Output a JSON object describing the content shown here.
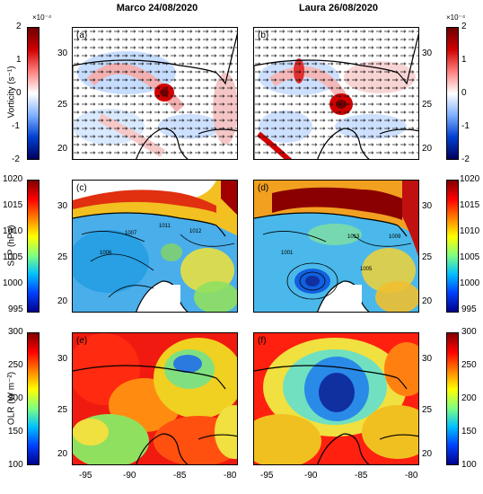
{
  "columns": {
    "left_title": "Marco 24/08/2020",
    "right_title": "Laura 26/08/2020"
  },
  "panel_labels": [
    "(a)",
    "(b)",
    "(c)",
    "(d)",
    "(e)",
    "(f)"
  ],
  "lat_ticks": [
    "30",
    "25",
    "20"
  ],
  "lon_ticks": [
    "-95",
    "-90",
    "-85",
    "-80"
  ],
  "rows": [
    {
      "ylabel": "Vorticity (s⁻¹)",
      "exponent": "×10⁻⁴",
      "ticks": [
        "2",
        "1",
        "0",
        "-1",
        "-2"
      ],
      "colormap": "blue-white-red"
    },
    {
      "ylabel": "SLP (hPa)",
      "ticks": [
        "1020",
        "1015",
        "1010",
        "1005",
        "1000",
        "995"
      ],
      "colormap": "jet"
    },
    {
      "ylabel": "OLR (W m⁻²)",
      "ticks": [
        "300",
        "250",
        "200",
        "150",
        "100"
      ],
      "colormap": "jet"
    }
  ],
  "contour_labels": [
    "1007",
    "1011",
    "1012",
    "1006",
    "1001",
    "1013",
    "1005",
    "1009"
  ],
  "colors": {
    "coast": "#000000",
    "deep_red": "#a00000",
    "red": "#e02020",
    "blue": "#2060e0",
    "cyan": "#40c0f0",
    "yellow": "#f0e040"
  }
}
